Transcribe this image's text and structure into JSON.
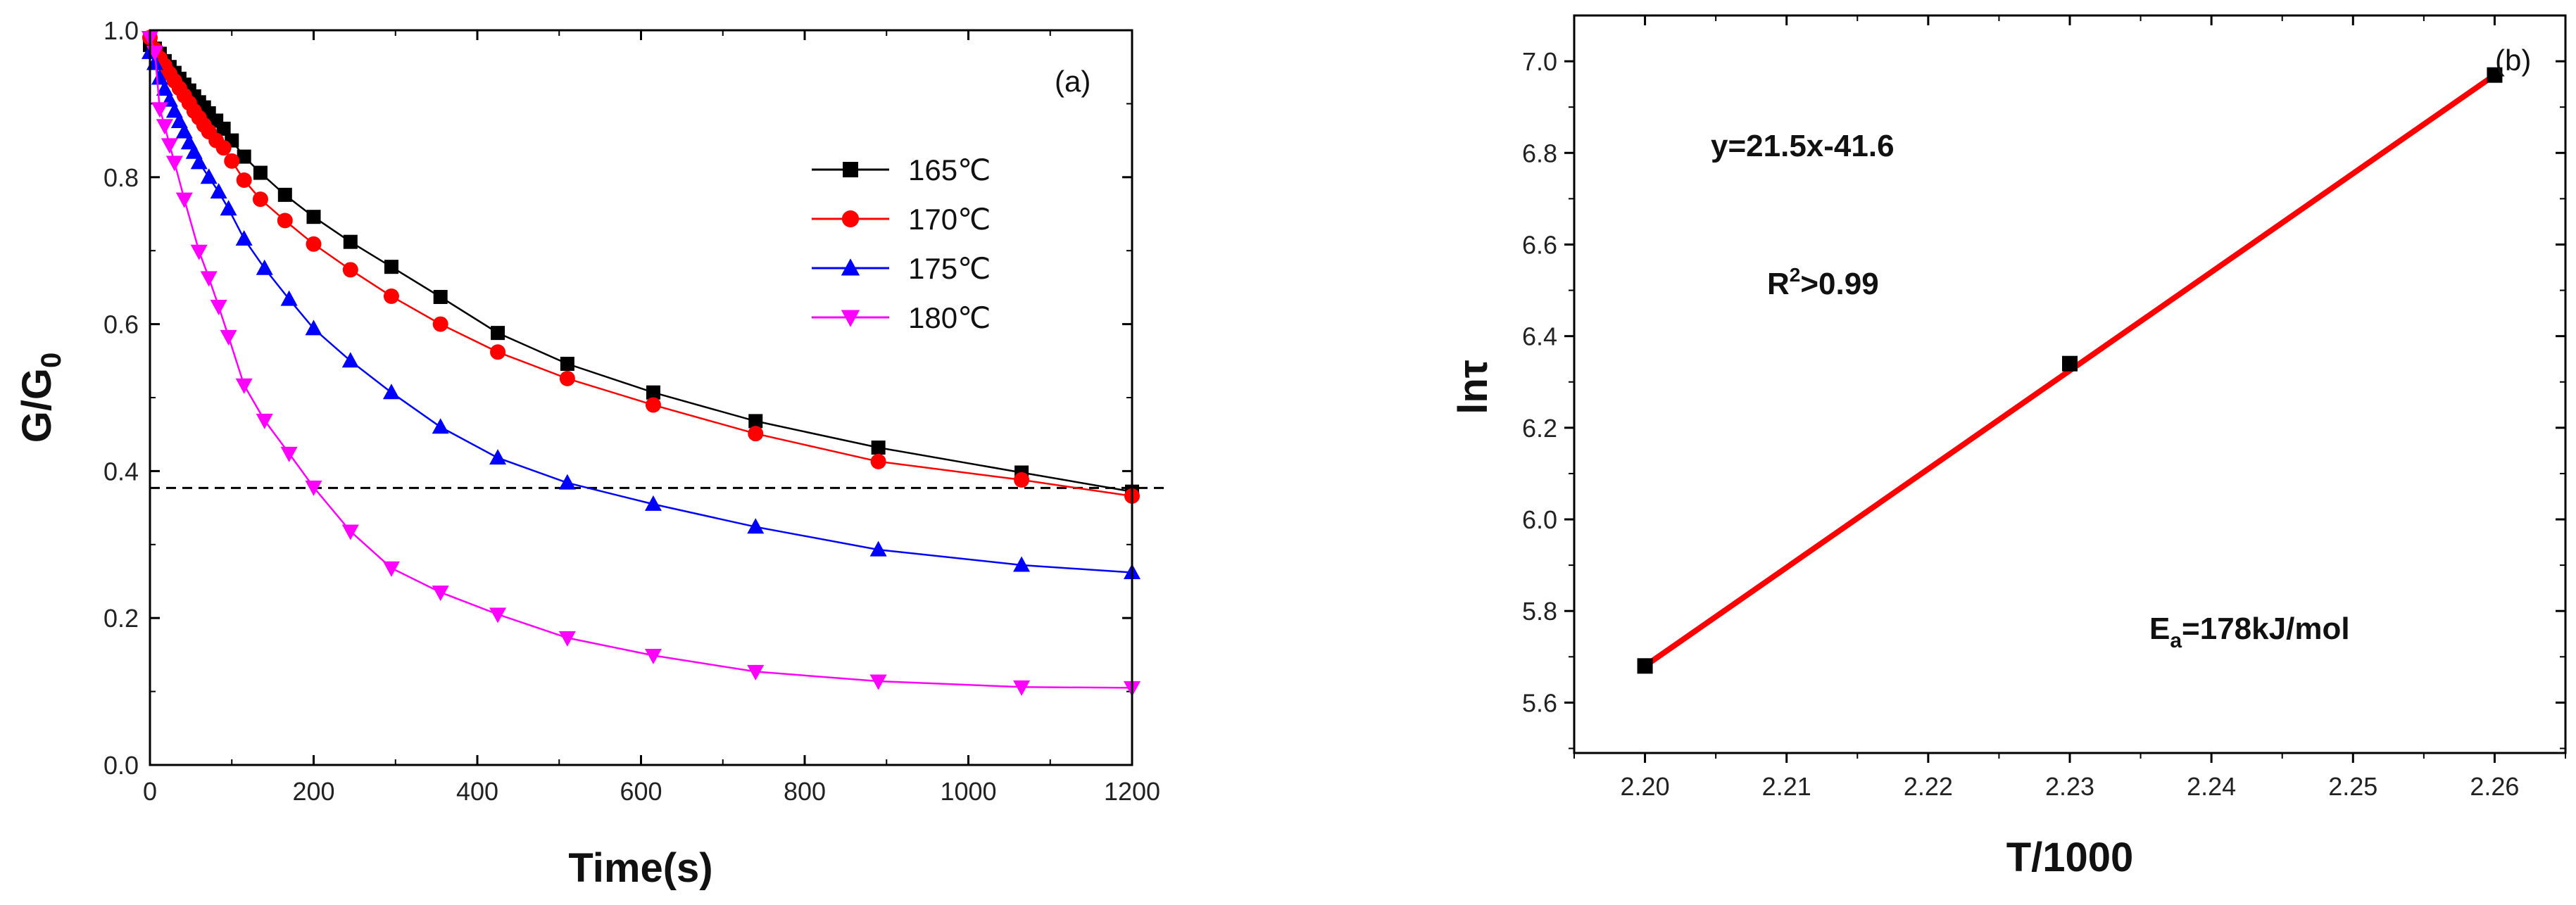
{
  "chart_data": [
    {
      "type": "line",
      "panel_label": "(a)",
      "xlabel": "Time(s)",
      "ylabel_main": "G/G",
      "ylabel_sub": "0",
      "xlim": [
        0,
        1200
      ],
      "ylim": [
        0,
        1.0
      ],
      "xticks": [
        "0",
        "200",
        "400",
        "600",
        "800",
        "1000",
        "1200"
      ],
      "yticks": [
        "0.0",
        "0.2",
        "0.4",
        "0.6",
        "0.8",
        "1.0"
      ],
      "reference_line": {
        "y": 0.377,
        "style": "dashed"
      },
      "legend_position": "upper-right",
      "series": [
        {
          "name": "165℃",
          "color": "#000000",
          "marker": "square",
          "x": [
            0,
            6,
            12,
            18,
            24,
            30,
            36,
            42,
            48,
            54,
            60,
            66,
            72,
            81,
            90,
            100,
            115,
            135,
            165,
            200,
            245,
            295,
            355,
            425,
            510,
            615,
            740,
            890,
            1065,
            1200
          ],
          "y": [
            0.98,
            0.975,
            0.968,
            0.958,
            0.95,
            0.942,
            0.934,
            0.926,
            0.918,
            0.91,
            0.902,
            0.895,
            0.887,
            0.877,
            0.866,
            0.85,
            0.828,
            0.806,
            0.776,
            0.746,
            0.712,
            0.678,
            0.637,
            0.588,
            0.546,
            0.507,
            0.468,
            0.432,
            0.398,
            0.372
          ]
        },
        {
          "name": "170℃",
          "color": "#ff0000",
          "marker": "circle",
          "x": [
            0,
            6,
            12,
            18,
            24,
            30,
            36,
            42,
            48,
            54,
            60,
            66,
            72,
            81,
            90,
            100,
            115,
            135,
            165,
            200,
            245,
            295,
            355,
            425,
            510,
            615,
            740,
            890,
            1065,
            1200
          ],
          "y": [
            0.99,
            0.974,
            0.962,
            0.952,
            0.941,
            0.931,
            0.921,
            0.911,
            0.901,
            0.89,
            0.881,
            0.871,
            0.862,
            0.85,
            0.84,
            0.822,
            0.796,
            0.77,
            0.741,
            0.709,
            0.674,
            0.638,
            0.6,
            0.562,
            0.526,
            0.49,
            0.451,
            0.413,
            0.388,
            0.366
          ]
        },
        {
          "name": "175℃",
          "color": "#0000ff",
          "marker": "triangle-up",
          "x": [
            0,
            6,
            12,
            18,
            24,
            30,
            36,
            42,
            48,
            54,
            60,
            72,
            84,
            96,
            115,
            140,
            170,
            200,
            245,
            295,
            355,
            425,
            510,
            615,
            740,
            890,
            1065,
            1200
          ],
          "y": [
            0.97,
            0.955,
            0.935,
            0.92,
            0.905,
            0.89,
            0.876,
            0.862,
            0.847,
            0.834,
            0.82,
            0.8,
            0.78,
            0.757,
            0.716,
            0.676,
            0.634,
            0.594,
            0.55,
            0.507,
            0.46,
            0.418,
            0.384,
            0.355,
            0.324,
            0.293,
            0.272,
            0.262
          ]
        },
        {
          "name": "180℃",
          "color": "#ff00ff",
          "marker": "triangle-down",
          "x": [
            0,
            6,
            12,
            18,
            24,
            30,
            42,
            60,
            72,
            84,
            96,
            115,
            140,
            170,
            200,
            245,
            295,
            355,
            425,
            510,
            615,
            740,
            890,
            1065,
            1200
          ],
          "y": [
            0.99,
            0.97,
            0.893,
            0.87,
            0.844,
            0.82,
            0.77,
            0.699,
            0.663,
            0.624,
            0.583,
            0.517,
            0.469,
            0.424,
            0.378,
            0.318,
            0.268,
            0.235,
            0.205,
            0.173,
            0.149,
            0.127,
            0.114,
            0.106,
            0.105
          ]
        }
      ]
    },
    {
      "type": "scatter",
      "panel_label": "(b)",
      "xlabel": "T/1000",
      "ylabel": "lnτ",
      "xlim": [
        2.195,
        2.265
      ],
      "ylim": [
        5.49,
        7.1
      ],
      "xticks": [
        "2.20",
        "2.21",
        "2.22",
        "2.23",
        "2.24",
        "2.25",
        "2.26"
      ],
      "yticks": [
        "5.6",
        "5.8",
        "6.0",
        "6.2",
        "6.4",
        "6.6",
        "6.8",
        "7.0"
      ],
      "points": {
        "x": [
          2.2,
          2.23,
          2.26
        ],
        "y": [
          5.68,
          6.34,
          6.97
        ],
        "color": "#000000",
        "marker": "square"
      },
      "fit_line": {
        "x": [
          2.2,
          2.26
        ],
        "y": [
          5.68,
          6.97
        ],
        "color": "#ff0000"
      },
      "annotations": {
        "equation": "y=21.5x-41.6",
        "r2_prefix": "R",
        "r2_sup": "2",
        "r2_suffix": ">0.99",
        "ea_prefix": "E",
        "ea_sub": "a",
        "ea_suffix": "=178kJ/mol"
      }
    }
  ]
}
